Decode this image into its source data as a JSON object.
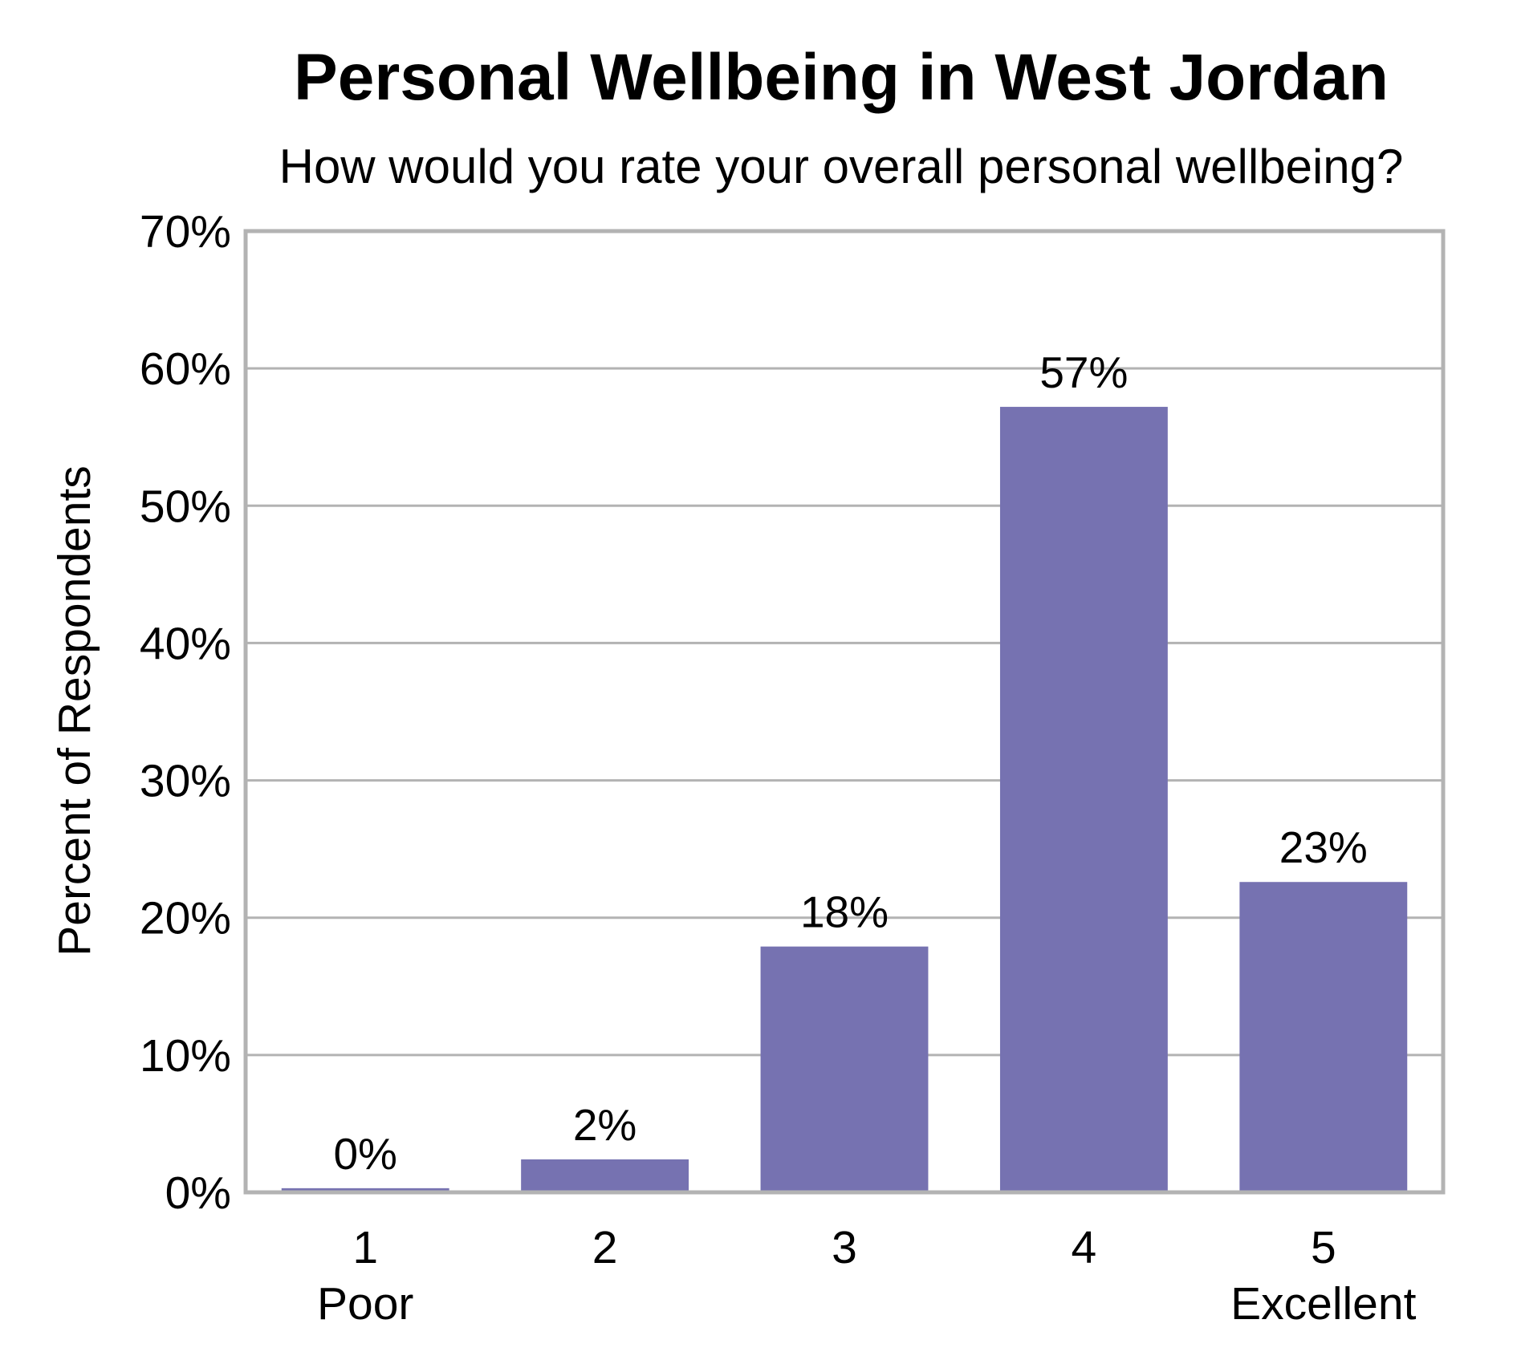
{
  "chart_data": {
    "type": "bar",
    "title": "Personal Wellbeing in West Jordan",
    "subtitle": "How would you rate your overall personal wellbeing?",
    "xlabel": "",
    "ylabel": "Percent of Respondents",
    "categories": [
      "1",
      "2",
      "3",
      "4",
      "5"
    ],
    "category_sublabels": [
      "Poor",
      "",
      "",
      "",
      "Excellent"
    ],
    "values": [
      0.3,
      2.4,
      17.9,
      57.2,
      22.6
    ],
    "data_labels": [
      "0%",
      "2%",
      "18%",
      "57%",
      "23%"
    ],
    "ylim": [
      0,
      70
    ],
    "yticks": [
      0,
      10,
      20,
      30,
      40,
      50,
      60,
      70
    ],
    "ytick_labels": [
      "0%",
      "10%",
      "20%",
      "30%",
      "40%",
      "50%",
      "60%",
      "70%"
    ],
    "grid": true,
    "legend": "none",
    "colors": {
      "bar": "#7672b1",
      "grid": "#b3b3b3",
      "frame": "#b3b3b3",
      "text": "#000000",
      "background": "#ffffff"
    }
  }
}
